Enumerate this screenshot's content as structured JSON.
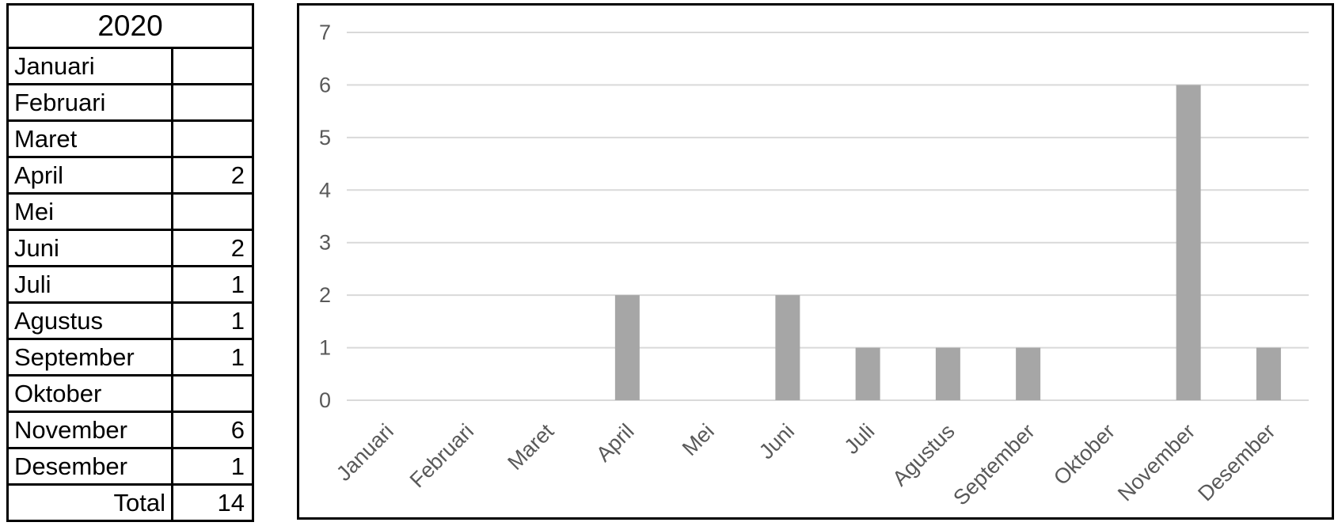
{
  "table": {
    "year": "2020",
    "rows": [
      {
        "label": "Januari",
        "value": ""
      },
      {
        "label": "Februari",
        "value": ""
      },
      {
        "label": "Maret",
        "value": ""
      },
      {
        "label": "April",
        "value": "2"
      },
      {
        "label": "Mei",
        "value": ""
      },
      {
        "label": "Juni",
        "value": "2"
      },
      {
        "label": "Juli",
        "value": "1"
      },
      {
        "label": "Agustus",
        "value": "1"
      },
      {
        "label": "September",
        "value": "1"
      },
      {
        "label": "Oktober",
        "value": ""
      },
      {
        "label": "November",
        "value": "6"
      },
      {
        "label": "Desember",
        "value": "1"
      }
    ],
    "total_label": "Total",
    "total_value": "14"
  },
  "chart_data": {
    "type": "bar",
    "title": "",
    "xlabel": "",
    "ylabel": "",
    "categories": [
      "Januari",
      "Februari",
      "Maret",
      "April",
      "Mei",
      "Juni",
      "Juli",
      "Agustus",
      "September",
      "Oktober",
      "November",
      "Desember"
    ],
    "values": [
      0,
      0,
      0,
      2,
      0,
      2,
      1,
      1,
      1,
      0,
      6,
      1
    ],
    "ylim": [
      0,
      7
    ],
    "yticks": [
      0,
      1,
      2,
      3,
      4,
      5,
      6,
      7
    ],
    "grid": true,
    "legend": false,
    "x_label_rotation_deg": -45,
    "colors": {
      "bar": "#a6a6a6",
      "gridline": "#d9d9d9",
      "tick_label": "#595959",
      "chart_border": "#000000"
    }
  }
}
